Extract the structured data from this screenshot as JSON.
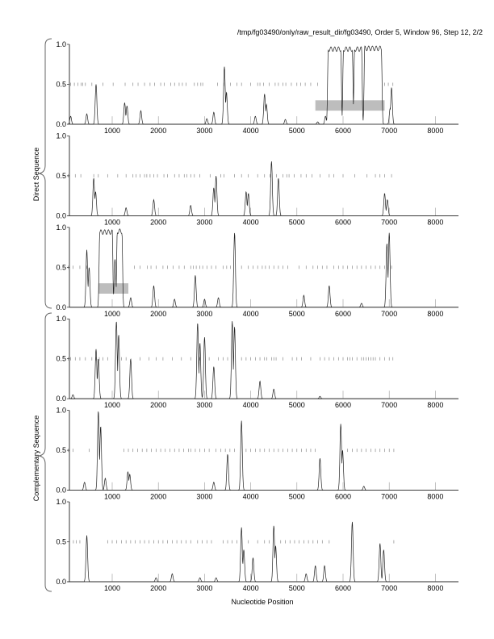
{
  "chart_data": {
    "type": "line",
    "title": "/tmp/fg03490/only/raw_result_dir/fg03490, Order 5, Window 96, Step 12, 2/2",
    "xlabel": "Nucleotide Position",
    "group_labels": [
      "Direct Sequence",
      "Complementary Sequence"
    ],
    "xlim": [
      0,
      8500
    ],
    "ylim": [
      0,
      1
    ],
    "x_ticks": [
      "1000",
      "2000",
      "3000",
      "4000",
      "5000",
      "6000",
      "7000",
      "8000"
    ],
    "y_ticks": [
      "0.0",
      "0.5",
      "1.0"
    ],
    "panels": [
      {
        "name": "direct-frame-1",
        "peaks": [
          [
            100,
            0.1
          ],
          [
            450,
            0.13
          ],
          [
            650,
            0.5
          ],
          [
            1270,
            0.27
          ],
          [
            1320,
            0.23
          ],
          [
            1620,
            0.17
          ],
          [
            3050,
            0.07
          ],
          [
            3200,
            0.15
          ],
          [
            3430,
            0.72
          ],
          [
            3475,
            0.4
          ],
          [
            4100,
            0.1
          ],
          [
            4300,
            0.38
          ],
          [
            4340,
            0.25
          ],
          [
            4750,
            0.06
          ],
          [
            5450,
            0.03
          ],
          [
            5620,
            0.1
          ]
        ],
        "plateaus": [
          [
            5680,
            5950,
            0.97
          ],
          [
            6010,
            6200,
            0.97
          ],
          [
            6250,
            6400,
            0.97
          ],
          [
            6470,
            6830,
            0.98
          ]
        ],
        "late_peaks": [
          [
            7050,
            0.46
          ],
          [
            7020,
            0.2
          ]
        ],
        "orfs": [
          [
            5400,
            6900
          ]
        ],
        "ticks": [
          100,
          180,
          260,
          330,
          360,
          420,
          560,
          800,
          1020,
          1280,
          1450,
          1560,
          1700,
          1820,
          1920,
          2050,
          2130,
          2270,
          2350,
          2450,
          2520,
          2600,
          2780,
          2850,
          2920,
          2960,
          3280,
          3420,
          3560,
          3700,
          3800,
          4000,
          4150,
          4200,
          4280,
          4400,
          4530,
          4600,
          4700,
          4760,
          4880,
          5000,
          5080,
          5180,
          5300,
          5450,
          6900,
          6980,
          7080
        ]
      },
      {
        "name": "direct-frame-2",
        "peaks": [
          [
            600,
            0.47
          ],
          [
            640,
            0.3
          ],
          [
            1300,
            0.1
          ],
          [
            1900,
            0.2
          ],
          [
            2700,
            0.13
          ],
          [
            3200,
            0.35
          ],
          [
            3250,
            0.5
          ],
          [
            3900,
            0.3
          ],
          [
            3950,
            0.28
          ],
          [
            4450,
            0.68
          ],
          [
            4600,
            0.47
          ],
          [
            6900,
            0.28
          ],
          [
            6960,
            0.2
          ]
        ],
        "plateaus": [],
        "late_peaks": [],
        "orfs": [],
        "ticks": [
          50,
          200,
          320,
          600,
          700,
          900,
          1120,
          1300,
          1450,
          1520,
          1600,
          1700,
          1750,
          1820,
          1900,
          1980,
          2120,
          2200,
          2350,
          2450,
          2560,
          2620,
          2700,
          2780,
          2900,
          3120,
          3350,
          3420,
          3650,
          3800,
          3950,
          4150,
          4300,
          4420,
          4560,
          4700,
          4780,
          4830,
          4940,
          5090,
          5200,
          5330,
          5500,
          5700,
          5800,
          6000,
          6250,
          6520,
          6700,
          6800,
          6900,
          7050
        ]
      },
      {
        "name": "direct-frame-3",
        "peaks": [
          [
            450,
            0.72
          ],
          [
            500,
            0.5
          ],
          [
            1060,
            0.6
          ],
          [
            1400,
            0.12
          ],
          [
            1900,
            0.27
          ],
          [
            2350,
            0.1
          ],
          [
            2800,
            0.4
          ],
          [
            3000,
            0.1
          ],
          [
            3300,
            0.12
          ],
          [
            3650,
            0.93
          ],
          [
            5150,
            0.15
          ],
          [
            5700,
            0.27
          ],
          [
            6400,
            0.05
          ],
          [
            6950,
            0.8
          ],
          [
            7000,
            0.93
          ]
        ],
        "plateaus": [
          [
            730,
            1000,
            0.97
          ],
          [
            1110,
            1210,
            0.98
          ]
        ],
        "late_peaks": [],
        "orfs": [
          [
            700,
            1350
          ]
        ],
        "ticks": [
          50,
          150,
          300,
          450,
          1480,
          1600,
          1760,
          1840,
          1950,
          2100,
          2200,
          2320,
          2450,
          2560,
          2700,
          2760,
          2820,
          2900,
          2960,
          3050,
          3150,
          3250,
          3400,
          3480,
          3560,
          3800,
          3950,
          4050,
          4150,
          4250,
          4320,
          4400,
          4500,
          4600,
          4700,
          4800,
          5050,
          5200,
          5350,
          5450,
          5550,
          5650,
          5800,
          5900,
          6000,
          6100,
          6200,
          6300,
          6400,
          6500,
          6600,
          6700,
          6800,
          6900,
          7050
        ]
      },
      {
        "name": "complementary-frame-1",
        "peaks": [
          [
            150,
            0.05
          ],
          [
            650,
            0.62
          ],
          [
            700,
            0.5
          ],
          [
            1090,
            0.97
          ],
          [
            1140,
            0.8
          ],
          [
            1400,
            0.5
          ],
          [
            2850,
            0.95
          ],
          [
            2900,
            0.7
          ],
          [
            3000,
            0.77
          ],
          [
            3200,
            0.4
          ],
          [
            3600,
            0.97
          ],
          [
            3650,
            0.9
          ],
          [
            4200,
            0.22
          ],
          [
            4500,
            0.12
          ],
          [
            5500,
            0.03
          ]
        ],
        "plateaus": [],
        "late_peaks": [],
        "orfs": [],
        "ticks": [
          50,
          100,
          200,
          300,
          420,
          560,
          650,
          720,
          800,
          900,
          1200,
          1300,
          1600,
          1800,
          1950,
          2100,
          2300,
          2500,
          2700,
          2900,
          3100,
          3300,
          3400,
          3500,
          3800,
          3900,
          4000,
          4100,
          4200,
          4300,
          4350,
          4450,
          4500,
          4550,
          4700,
          4900,
          5000,
          5100,
          5300,
          5500,
          5600,
          5700,
          5800,
          5900,
          6000,
          6100,
          6150,
          6200,
          6300,
          6400,
          6450,
          6500,
          6550,
          6600,
          6650,
          6700,
          6800,
          6900,
          7000,
          7080
        ]
      },
      {
        "name": "complementary-frame-2",
        "peaks": [
          [
            400,
            0.1
          ],
          [
            700,
            0.99
          ],
          [
            750,
            0.8
          ],
          [
            850,
            0.15
          ],
          [
            1340,
            0.23
          ],
          [
            1380,
            0.2
          ],
          [
            3200,
            0.1
          ],
          [
            3500,
            0.45
          ],
          [
            3800,
            0.87
          ],
          [
            5500,
            0.4
          ],
          [
            5950,
            0.83
          ],
          [
            5990,
            0.5
          ],
          [
            6450,
            0.05
          ]
        ],
        "plateaus": [],
        "late_peaks": [],
        "orfs": [],
        "ticks": [
          50,
          150,
          500,
          1250,
          1350,
          1450,
          1550,
          1650,
          1750,
          1850,
          1950,
          2050,
          2150,
          2250,
          2350,
          2450,
          2550,
          2650,
          2700,
          2800,
          2900,
          3000,
          3100,
          3250,
          3350,
          3450,
          3550,
          3650,
          3900,
          4000,
          4100,
          4200,
          4300,
          4400,
          4500,
          4600,
          4700,
          4800,
          4900,
          5000,
          5100,
          5200,
          5300,
          5400,
          6100,
          6200,
          6300,
          6400,
          6500,
          6600,
          6700,
          6800,
          6900,
          7000,
          7100
        ]
      },
      {
        "name": "complementary-frame-3",
        "peaks": [
          [
            450,
            0.58
          ],
          [
            1950,
            0.05
          ],
          [
            2300,
            0.1
          ],
          [
            2900,
            0.05
          ],
          [
            3250,
            0.05
          ],
          [
            3800,
            0.68
          ],
          [
            3850,
            0.4
          ],
          [
            4050,
            0.3
          ],
          [
            4500,
            0.7
          ],
          [
            4540,
            0.45
          ],
          [
            5200,
            0.1
          ],
          [
            5400,
            0.2
          ],
          [
            5600,
            0.2
          ],
          [
            6200,
            0.75
          ],
          [
            6800,
            0.48
          ],
          [
            6880,
            0.4
          ]
        ],
        "plateaus": [],
        "late_peaks": [],
        "orfs": [],
        "ticks": [
          80,
          160,
          220,
          300,
          900,
          1000,
          1100,
          1200,
          1300,
          1400,
          1500,
          1600,
          1700,
          1800,
          1900,
          2000,
          2100,
          2200,
          2300,
          2400,
          2500,
          2600,
          2700,
          2850,
          2950,
          3050,
          3150,
          3400,
          3500,
          3600,
          3700,
          3950,
          4150,
          4300,
          4400,
          4650,
          4750,
          4850,
          4950,
          5050,
          5150,
          5250,
          5350,
          5450,
          5550,
          5700,
          7100
        ]
      }
    ]
  }
}
